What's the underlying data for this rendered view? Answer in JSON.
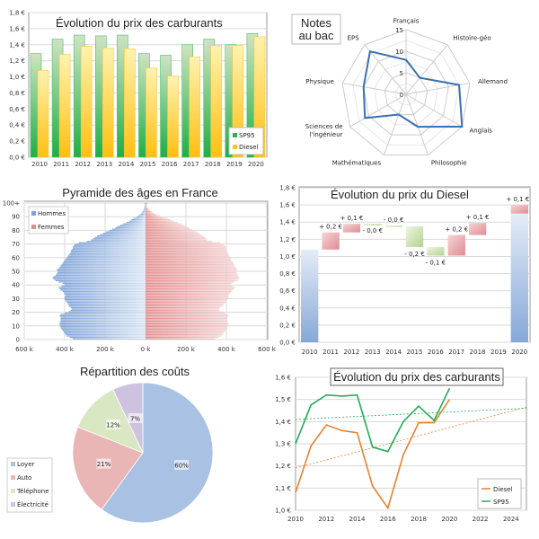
{
  "chart_data": [
    {
      "type": "bar",
      "title": "Évolution du prix des carburants",
      "categories": [
        "2010",
        "2011",
        "2012",
        "2013",
        "2014",
        "2015",
        "2016",
        "2017",
        "2018",
        "2019",
        "2020"
      ],
      "series": [
        {
          "name": "SP95",
          "values": [
            1.29,
            1.47,
            1.52,
            1.51,
            1.52,
            1.29,
            1.27,
            1.4,
            1.47,
            1.4,
            1.54
          ],
          "color": "#2db34a"
        },
        {
          "name": "Diesel",
          "values": [
            1.08,
            1.28,
            1.38,
            1.36,
            1.35,
            1.11,
            1.01,
            1.25,
            1.39,
            1.39,
            1.5
          ],
          "color": "#ffc51a"
        }
      ],
      "ylim": [
        0,
        1.8
      ],
      "yticks": [
        "0,0 €",
        "0,2 €",
        "0,4 €",
        "0,6 €",
        "0,8 €",
        "1,0 €",
        "1,2 €",
        "1,4 €",
        "1,6 €",
        "1,8 €"
      ],
      "grid": true,
      "legend": "bottom-right"
    },
    {
      "type": "radar",
      "title": "Notes\nau bac",
      "title_lines": [
        "Notes",
        "au bac"
      ],
      "categories": [
        "Français",
        "Histoire-géo",
        "Allemand",
        "Anglais",
        "Philosophie",
        "Mathématiques",
        "Sciences de l'ingénieur",
        "Physique",
        "EPS"
      ],
      "category_lines": [
        [
          "Français"
        ],
        [
          "Histoire-géo"
        ],
        [
          "Allemand"
        ],
        [
          "Anglais"
        ],
        [
          "Philosophie"
        ],
        [
          "Mathématiques"
        ],
        [
          "Sciences de",
          "l'ingénieur"
        ],
        [
          "Physique"
        ],
        [
          "EPS"
        ]
      ],
      "values": [
        8,
        5,
        12.5,
        15,
        8,
        5,
        11,
        10,
        13
      ],
      "rlim": [
        0,
        15
      ],
      "rticks": [
        "0",
        "5",
        "10",
        "15"
      ],
      "color": "#3a6fb0"
    },
    {
      "type": "bar",
      "orientation": "horizontal",
      "title": "Pyramide des âges en France",
      "ages": "0-100",
      "series": [
        {
          "name": "Hommes",
          "color": "#7fa3d6",
          "values": [
            360,
            375,
            390,
            395,
            400,
            405,
            410,
            415,
            420,
            420,
            425,
            425,
            425,
            420,
            420,
            420,
            420,
            425,
            420,
            400,
            380,
            370,
            365,
            370,
            380,
            380,
            385,
            390,
            395,
            400,
            400,
            400,
            395,
            400,
            405,
            410,
            420,
            425,
            430,
            415,
            400,
            410,
            430,
            445,
            455,
            460,
            455,
            445,
            440,
            435,
            435,
            440,
            430,
            425,
            420,
            415,
            410,
            405,
            400,
            395,
            390,
            385,
            380,
            375,
            370,
            370,
            365,
            360,
            360,
            355,
            350,
            330,
            290,
            270,
            260,
            250,
            240,
            225,
            210,
            195,
            180,
            165,
            150,
            140,
            125,
            110,
            95,
            80,
            70,
            60,
            45,
            35,
            25,
            20,
            15,
            10,
            8,
            6,
            4,
            3,
            5
          ]
        },
        {
          "name": "Femmes",
          "color": "#e08f8f",
          "values": [
            345,
            360,
            375,
            380,
            385,
            390,
            395,
            400,
            405,
            405,
            410,
            410,
            410,
            405,
            405,
            405,
            405,
            410,
            405,
            390,
            375,
            365,
            365,
            370,
            380,
            385,
            390,
            395,
            400,
            405,
            410,
            410,
            410,
            415,
            420,
            425,
            430,
            440,
            445,
            430,
            420,
            425,
            440,
            455,
            460,
            465,
            460,
            455,
            455,
            450,
            450,
            455,
            450,
            445,
            440,
            440,
            435,
            430,
            425,
            420,
            420,
            415,
            410,
            410,
            405,
            405,
            400,
            400,
            395,
            390,
            385,
            370,
            330,
            305,
            300,
            295,
            285,
            275,
            265,
            255,
            240,
            230,
            215,
            205,
            190,
            175,
            160,
            140,
            125,
            110,
            90,
            70,
            55,
            40,
            30,
            22,
            15,
            10,
            7,
            5,
            10
          ]
        }
      ],
      "xlim": [
        -600,
        600
      ],
      "xticks": [
        "600 k",
        "400 k",
        "200 k",
        "0 k",
        "200 k",
        "400 k",
        "600 k"
      ],
      "yticks": [
        "0",
        "10",
        "20",
        "30",
        "40",
        "50",
        "60",
        "70",
        "80",
        "90",
        "100+"
      ],
      "legend": "top-left"
    },
    {
      "type": "waterfall",
      "title": "Évolution du prix du Diesel",
      "categories": [
        "2010",
        "2011",
        "2012",
        "2013",
        "2014",
        "2015",
        "2016",
        "2017",
        "2018",
        "2019",
        "2020"
      ],
      "steps": [
        {
          "kind": "total",
          "from": 0,
          "to": 1.08,
          "label": ""
        },
        {
          "kind": "up",
          "from": 1.08,
          "to": 1.28,
          "label": "+ 0,2 €"
        },
        {
          "kind": "up",
          "from": 1.28,
          "to": 1.38,
          "label": "+ 0,1 €"
        },
        {
          "kind": "down",
          "from": 1.38,
          "to": 1.36,
          "label": "- 0,0 €"
        },
        {
          "kind": "down",
          "from": 1.36,
          "to": 1.35,
          "label": "- 0,0 €"
        },
        {
          "kind": "down",
          "from": 1.35,
          "to": 1.11,
          "label": "- 0,2 €"
        },
        {
          "kind": "down",
          "from": 1.11,
          "to": 1.01,
          "label": "- 0,1 €"
        },
        {
          "kind": "up",
          "from": 1.01,
          "to": 1.25,
          "label": "+ 0,2 €"
        },
        {
          "kind": "up",
          "from": 1.25,
          "to": 1.39,
          "label": "+ 0,1 €"
        },
        {
          "kind": "none",
          "from": 1.39,
          "to": 1.39,
          "label": ""
        },
        {
          "kind": "total",
          "from": 0,
          "to": 1.5,
          "label": "",
          "extra": {
            "from": 1.5,
            "to": 1.6,
            "label": "+ 0,1 €"
          }
        }
      ],
      "ylim": [
        0,
        1.8
      ],
      "yticks": [
        "0,0 €",
        "0,2 €",
        "0,4 €",
        "0,6 €",
        "0,8 €",
        "1,0 €",
        "1,2 €",
        "1,4 €",
        "1,6 €",
        "1,8 €"
      ],
      "colors": {
        "total": "#8fb0dc",
        "up": "#e29a9f",
        "down": "#b9d69a"
      }
    },
    {
      "type": "pie",
      "title": "Répartition des coûts",
      "slices": [
        {
          "name": "Loyer",
          "value": 60,
          "label": "60%",
          "color": "#a9c1e3"
        },
        {
          "name": "Auto",
          "value": 21,
          "label": "21%",
          "color": "#eab5b5"
        },
        {
          "name": "Téléphone",
          "value": 12,
          "label": "12%",
          "color": "#d9e8c2"
        },
        {
          "name": "Électricité",
          "value": 7,
          "label": "7%",
          "color": "#cdc3e0"
        }
      ],
      "legend": "bottom-left"
    },
    {
      "type": "line",
      "title": "Évolution du prix des carburants",
      "x": [
        2010,
        2011,
        2012,
        2013,
        2014,
        2015,
        2016,
        2017,
        2018,
        2019,
        2020
      ],
      "series": [
        {
          "name": "Diesel",
          "color": "#e8812d",
          "values": [
            1.08,
            1.29,
            1.385,
            1.36,
            1.35,
            1.11,
            1.01,
            1.25,
            1.395,
            1.395,
            1.5
          ],
          "trend": [
            1.19,
            1.465
          ]
        },
        {
          "name": "SP95",
          "color": "#1fae55",
          "values": [
            1.3,
            1.475,
            1.52,
            1.515,
            1.52,
            1.285,
            1.265,
            1.4,
            1.47,
            1.405,
            1.55
          ],
          "trend": [
            1.41,
            1.46
          ]
        }
      ],
      "trend_x": [
        2010,
        2025
      ],
      "xlim": [
        2010,
        2025
      ],
      "xticks": [
        "2010",
        "2012",
        "2014",
        "2016",
        "2018",
        "2020",
        "2022",
        "2024"
      ],
      "ylim": [
        1.0,
        1.6
      ],
      "yticks": [
        "1,0 €",
        "1,1 €",
        "1,2 €",
        "1,3 €",
        "1,4 €",
        "1,5 €",
        "1,6 €"
      ],
      "legend": "bottom-right"
    }
  ]
}
